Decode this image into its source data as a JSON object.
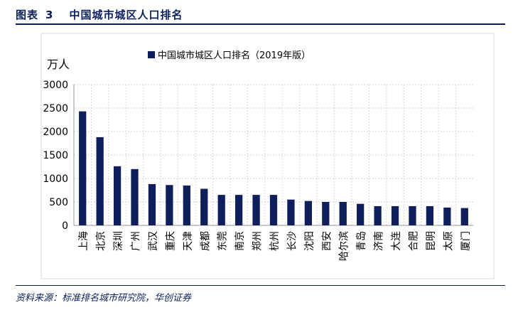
{
  "figure": {
    "label": "图表",
    "number": "3",
    "title": "中国城市城区人口排名",
    "source": "资料来源：标准排名城市研究院，华创证券"
  },
  "colors": {
    "bar": "#0f1f5c",
    "header": "#0a1f5c",
    "grid": "#d6d6d6"
  },
  "chart_data": {
    "type": "bar",
    "unit_label": "万人",
    "legend": "中国城市城区人口排名（2019年版）",
    "legend_position": "top",
    "grid": true,
    "ylim": [
      0,
      3000
    ],
    "yticks": [
      0,
      500,
      1000,
      1500,
      2000,
      2500,
      3000
    ],
    "categories": [
      "上海",
      "北京",
      "深圳",
      "广州",
      "武汉",
      "重庆",
      "天津",
      "成都",
      "东莞",
      "南京",
      "郑州",
      "杭州",
      "长沙",
      "沈阳",
      "西安",
      "哈尔滨",
      "青岛",
      "济南",
      "大连",
      "合肥",
      "昆明",
      "太原",
      "厦门"
    ],
    "values": [
      2430,
      1880,
      1260,
      1200,
      880,
      860,
      850,
      780,
      650,
      650,
      650,
      650,
      550,
      520,
      500,
      500,
      460,
      410,
      410,
      410,
      410,
      380,
      370
    ]
  }
}
